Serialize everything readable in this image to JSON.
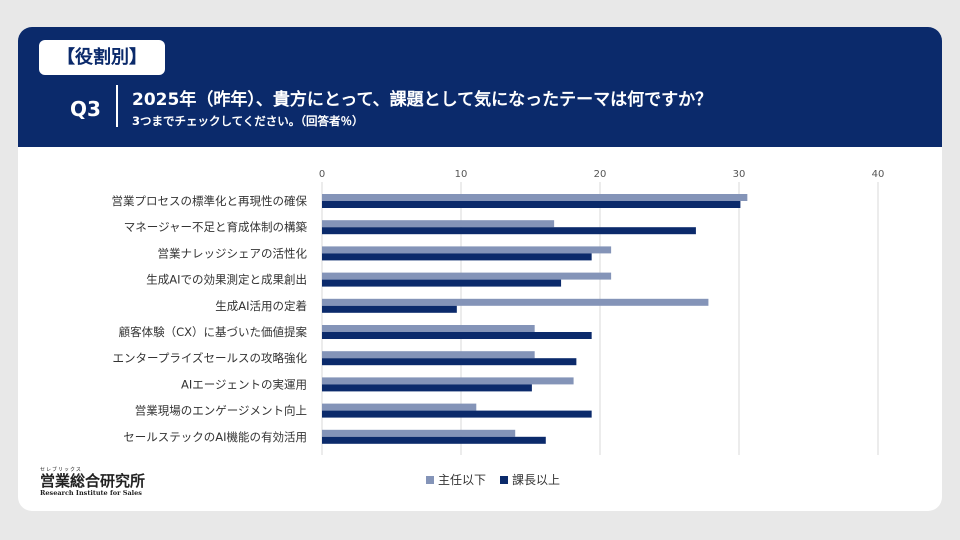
{
  "header": {
    "tag": "【役割別】",
    "question_no": "Q3",
    "title": "2025年（昨年）、貴方にとって、課題として気になったテーマは何ですか？",
    "subtitle": "3つまでチェックしてください。（回答者％）"
  },
  "logo": {
    "kana": "セレブリックス",
    "name": "営業総合研究所",
    "english": "Research Institute for Sales"
  },
  "colors": {
    "navy": "#0b2a6b",
    "light": "#8494b8",
    "dark": "#0b2a6b",
    "grid": "#d9d9d9"
  },
  "chart_data": {
    "type": "bar",
    "orientation": "horizontal",
    "categories": [
      "営業プロセスの標準化と再現性の確保",
      "マネージャー不足と育成体制の構築",
      "営業ナレッジシェアの活性化",
      "生成AIでの効果測定と成果創出",
      "生成AI活用の定着",
      "顧客体験（CX）に基づいた価値提案",
      "エンタープライズセールスの攻略強化",
      "AIエージェントの実運用",
      "営業現場のエンゲージメント向上",
      "セールステックのAI機能の有効活用"
    ],
    "series": [
      {
        "name": "主任以下",
        "color": "#8494b8",
        "values": [
          30.6,
          16.7,
          20.8,
          20.8,
          27.8,
          15.3,
          15.3,
          18.1,
          11.1,
          13.9
        ]
      },
      {
        "name": "課長以上",
        "color": "#0b2a6b",
        "values": [
          30.1,
          26.9,
          19.4,
          17.2,
          9.7,
          19.4,
          18.3,
          15.1,
          19.4,
          16.1
        ]
      }
    ],
    "xlim": [
      0,
      40
    ],
    "xticks": [
      "0",
      "10",
      "20",
      "30",
      "40"
    ],
    "grid": true,
    "legend_position": "bottom"
  }
}
